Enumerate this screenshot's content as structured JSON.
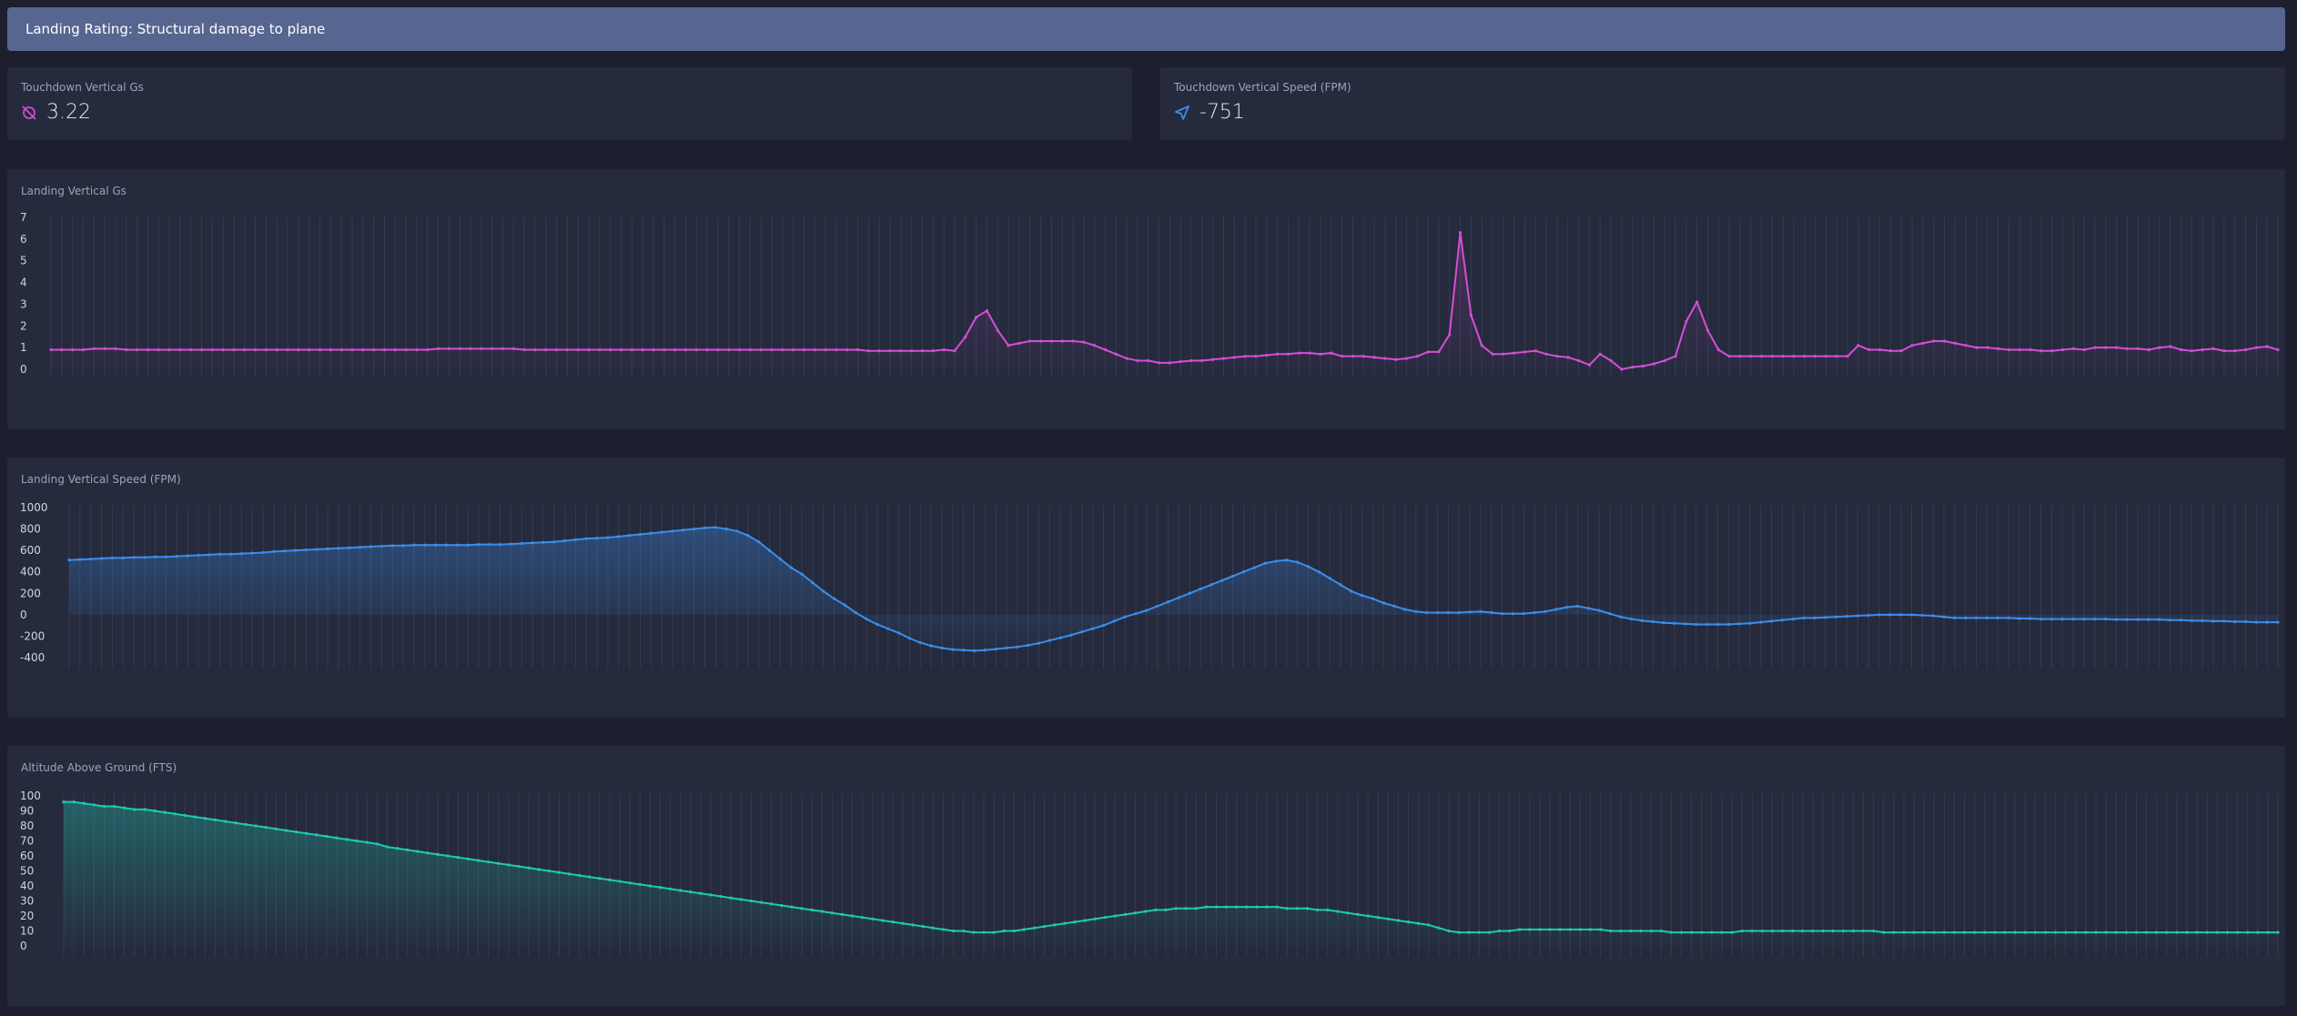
{
  "banner": {
    "text": "Landing Rating: Structural damage to plane"
  },
  "stats": [
    {
      "label": "Touchdown Vertical Gs",
      "value": "3.22",
      "icon": "g-force-icon",
      "color": "#d04ed0"
    },
    {
      "label": "Touchdown Vertical Speed (FPM)",
      "value": "-751",
      "icon": "paper-plane-icon",
      "color": "#3a8eea"
    }
  ],
  "colors": {
    "background": "#1e1f2e",
    "panel": "#262a3d",
    "banner": "#566690",
    "gs_line": "#d44fd4",
    "vs_line": "#3a8eea",
    "alt_line": "#1fc9b0"
  },
  "chart_data": [
    {
      "type": "line",
      "title": "Landing Vertical Gs",
      "ylim": [
        0,
        7
      ],
      "yticks": [
        0,
        1,
        2,
        3,
        4,
        5,
        6,
        7
      ],
      "grid": true,
      "series": [
        {
          "values": [
            0.9,
            0.9,
            0.9,
            0.9,
            0.95,
            0.95,
            0.95,
            0.9,
            0.9,
            0.9,
            0.9,
            0.9,
            0.9,
            0.9,
            0.9,
            0.9,
            0.9,
            0.9,
            0.9,
            0.9,
            0.9,
            0.9,
            0.9,
            0.9,
            0.9,
            0.9,
            0.9,
            0.9,
            0.9,
            0.9,
            0.9,
            0.9,
            0.9,
            0.9,
            0.9,
            0.9,
            0.95,
            0.95,
            0.95,
            0.95,
            0.95,
            0.95,
            0.95,
            0.95,
            0.9,
            0.9,
            0.9,
            0.9,
            0.9,
            0.9,
            0.9,
            0.9,
            0.9,
            0.9,
            0.9,
            0.9,
            0.9,
            0.9,
            0.9,
            0.9,
            0.9,
            0.9,
            0.9,
            0.9,
            0.9,
            0.9,
            0.9,
            0.9,
            0.9,
            0.9,
            0.9,
            0.9,
            0.9,
            0.9,
            0.9,
            0.9,
            0.85,
            0.85,
            0.85,
            0.85,
            0.85,
            0.85,
            0.85,
            0.9,
            0.85,
            1.5,
            2.4,
            2.7,
            1.8,
            1.1,
            1.2,
            1.3,
            1.3,
            1.3,
            1.3,
            1.3,
            1.25,
            1.1,
            0.9,
            0.7,
            0.5,
            0.4,
            0.4,
            0.3,
            0.3,
            0.35,
            0.4,
            0.4,
            0.45,
            0.5,
            0.55,
            0.6,
            0.6,
            0.65,
            0.7,
            0.7,
            0.75,
            0.75,
            0.7,
            0.75,
            0.6,
            0.6,
            0.6,
            0.55,
            0.5,
            0.45,
            0.5,
            0.6,
            0.8,
            0.8,
            1.6,
            6.3,
            2.5,
            1.1,
            0.7,
            0.7,
            0.75,
            0.8,
            0.85,
            0.7,
            0.6,
            0.55,
            0.4,
            0.2,
            0.7,
            0.4,
            0.0,
            0.1,
            0.15,
            0.25,
            0.4,
            0.6,
            2.2,
            3.1,
            1.8,
            0.9,
            0.6,
            0.6,
            0.6,
            0.6,
            0.6,
            0.6,
            0.6,
            0.6,
            0.6,
            0.6,
            0.6,
            0.6,
            1.1,
            0.9,
            0.9,
            0.85,
            0.85,
            1.1,
            1.2,
            1.3,
            1.3,
            1.2,
            1.1,
            1.0,
            1.0,
            0.95,
            0.9,
            0.9,
            0.9,
            0.85,
            0.85,
            0.9,
            0.95,
            0.9,
            1.0,
            1.0,
            1.0,
            0.95,
            0.95,
            0.9,
            1.0,
            1.05,
            0.9,
            0.85,
            0.9,
            0.95,
            0.85,
            0.85,
            0.9,
            1.0,
            1.05,
            0.9
          ]
        }
      ]
    },
    {
      "type": "area",
      "title": "Landing Vertical Speed (FPM)",
      "ylim": [
        -400,
        1000
      ],
      "yticks": [
        -400,
        -200,
        0,
        200,
        400,
        600,
        800,
        1000
      ],
      "grid": true,
      "series": [
        {
          "values": [
            510,
            515,
            520,
            525,
            530,
            530,
            535,
            535,
            540,
            540,
            545,
            550,
            555,
            560,
            565,
            565,
            570,
            575,
            580,
            590,
            595,
            600,
            605,
            610,
            615,
            620,
            625,
            630,
            635,
            640,
            645,
            645,
            650,
            650,
            650,
            650,
            650,
            650,
            655,
            655,
            655,
            660,
            665,
            670,
            675,
            680,
            690,
            700,
            710,
            715,
            720,
            730,
            740,
            750,
            760,
            770,
            780,
            790,
            800,
            810,
            815,
            800,
            780,
            740,
            680,
            600,
            520,
            440,
            380,
            300,
            220,
            150,
            90,
            20,
            -40,
            -90,
            -130,
            -170,
            -220,
            -260,
            -290,
            -310,
            -325,
            -330,
            -335,
            -330,
            -320,
            -310,
            -300,
            -285,
            -265,
            -240,
            -215,
            -190,
            -160,
            -130,
            -100,
            -60,
            -20,
            10,
            40,
            80,
            120,
            160,
            200,
            240,
            280,
            320,
            360,
            400,
            440,
            480,
            500,
            510,
            490,
            450,
            400,
            340,
            280,
            220,
            180,
            150,
            110,
            80,
            50,
            30,
            20,
            20,
            20,
            20,
            25,
            30,
            20,
            10,
            10,
            10,
            20,
            30,
            50,
            70,
            80,
            60,
            40,
            10,
            -20,
            -40,
            -55,
            -65,
            -75,
            -80,
            -85,
            -90,
            -90,
            -90,
            -90,
            -85,
            -80,
            -70,
            -60,
            -50,
            -40,
            -30,
            -30,
            -25,
            -20,
            -15,
            -10,
            -5,
            0,
            0,
            0,
            0,
            -5,
            -10,
            -20,
            -30,
            -30,
            -30,
            -30,
            -30,
            -30,
            -35,
            -35,
            -40,
            -40,
            -40,
            -40,
            -40,
            -40,
            -40,
            -45,
            -45,
            -45,
            -45,
            -45,
            -50,
            -50,
            -55,
            -55,
            -60,
            -60,
            -65,
            -65,
            -70,
            -70,
            -70
          ]
        }
      ]
    },
    {
      "type": "area",
      "title": "Altitude Above Ground (FTS)",
      "ylim": [
        0,
        100
      ],
      "yticks": [
        0,
        10,
        20,
        30,
        40,
        50,
        60,
        70,
        80,
        90,
        100
      ],
      "grid": true,
      "series": [
        {
          "values": [
            96,
            96,
            95,
            94,
            93,
            93,
            92,
            91,
            91,
            90,
            89,
            88,
            87,
            86,
            85,
            84,
            83,
            82,
            81,
            80,
            79,
            78,
            77,
            76,
            75,
            74,
            73,
            72,
            71,
            70,
            69,
            68,
            66,
            65,
            64,
            63,
            62,
            61,
            60,
            59,
            58,
            57,
            56,
            55,
            54,
            53,
            52,
            51,
            50,
            49,
            48,
            47,
            46,
            45,
            44,
            43,
            42,
            41,
            40,
            39,
            38,
            37,
            36,
            35,
            34,
            33,
            32,
            31,
            30,
            29,
            28,
            27,
            26,
            25,
            24,
            23,
            22,
            21,
            20,
            19,
            18,
            17,
            16,
            15,
            14,
            13,
            12,
            11,
            10,
            10,
            9,
            9,
            9,
            10,
            10,
            11,
            12,
            13,
            14,
            15,
            16,
            17,
            18,
            19,
            20,
            21,
            22,
            23,
            24,
            24,
            25,
            25,
            25,
            26,
            26,
            26,
            26,
            26,
            26,
            26,
            26,
            25,
            25,
            25,
            24,
            24,
            23,
            22,
            21,
            20,
            19,
            18,
            17,
            16,
            15,
            14,
            12,
            10,
            9,
            9,
            9,
            9,
            10,
            10,
            11,
            11,
            11,
            11,
            11,
            11,
            11,
            11,
            11,
            10,
            10,
            10,
            10,
            10,
            10,
            9,
            9,
            9,
            9,
            9,
            9,
            9,
            10,
            10,
            10,
            10,
            10,
            10,
            10,
            10,
            10,
            10,
            10,
            10,
            10,
            10,
            9,
            9,
            9,
            9,
            9,
            9,
            9,
            9,
            9,
            9,
            9,
            9,
            9,
            9,
            9,
            9,
            9,
            9,
            9,
            9,
            9,
            9,
            9,
            9,
            9,
            9,
            9,
            9,
            9,
            9,
            9,
            9,
            9,
            9,
            9,
            9,
            9,
            9,
            9,
            9
          ]
        }
      ]
    }
  ]
}
